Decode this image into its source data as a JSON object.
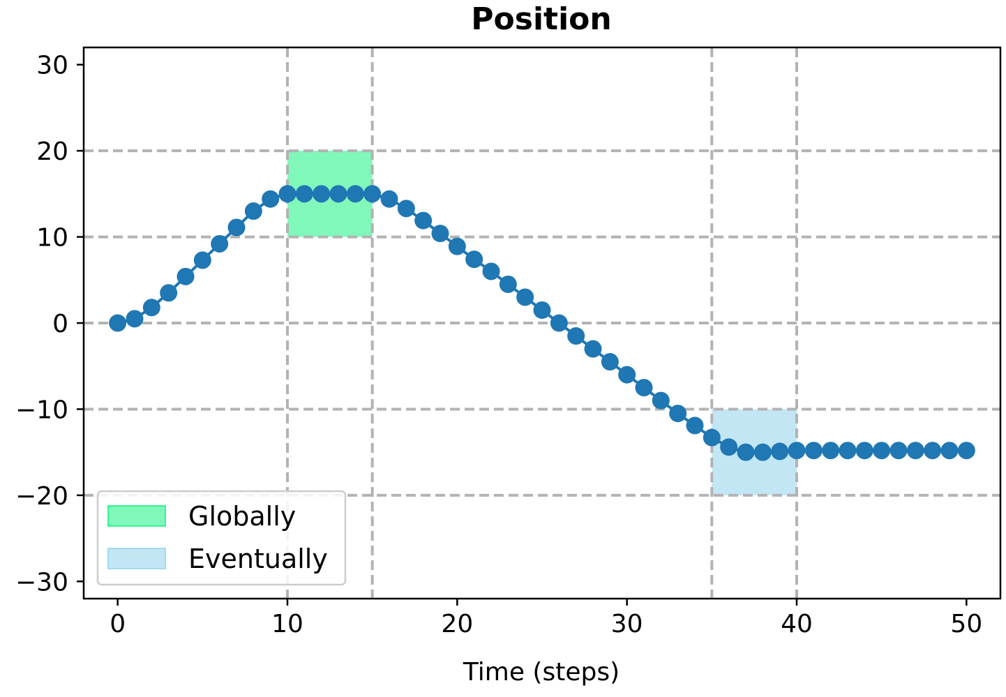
{
  "chart_data": {
    "type": "line",
    "title": "Position",
    "xlabel": "Time (steps)",
    "ylabel": "",
    "xlim": [
      -2,
      52
    ],
    "ylim": [
      -32,
      32
    ],
    "xticks": [
      0,
      10,
      20,
      30,
      40,
      50
    ],
    "yticks": [
      30,
      20,
      10,
      0,
      -10,
      -20,
      -30
    ],
    "ytick_labels": [
      "30",
      "20",
      "10",
      "0",
      "−10",
      "−20",
      "−30"
    ],
    "grid": "on, dashed",
    "legend_position": "lower-left",
    "series": [
      {
        "color": "#1f77b4",
        "marker": "circle",
        "x": [
          0,
          1,
          2,
          3,
          4,
          5,
          6,
          7,
          8,
          9,
          10,
          11,
          12,
          13,
          14,
          15,
          16,
          17,
          18,
          19,
          20,
          21,
          22,
          23,
          24,
          25,
          26,
          27,
          28,
          29,
          30,
          31,
          32,
          33,
          34,
          35,
          36,
          37,
          38,
          39,
          40,
          41,
          42,
          43,
          44,
          45,
          46,
          47,
          48,
          49,
          50
        ],
        "y": [
          0,
          0.5,
          1.8,
          3.5,
          5.4,
          7.3,
          9.2,
          11.1,
          13,
          14.4,
          15,
          15,
          15,
          15,
          15,
          15,
          14.4,
          13.3,
          11.9,
          10.4,
          8.9,
          7.4,
          6,
          4.5,
          3,
          1.5,
          0,
          -1.5,
          -3,
          -4.5,
          -6,
          -7.5,
          -9,
          -10.5,
          -11.9,
          -13.3,
          -14.4,
          -15,
          -15,
          -14.9,
          -14.8,
          -14.8,
          -14.8,
          -14.8,
          -14.8,
          -14.8,
          -14.8,
          -14.8,
          -14.8,
          -14.8,
          -14.8
        ]
      }
    ],
    "regions": [
      {
        "label": "Globally",
        "x": [
          10,
          15
        ],
        "y": [
          10,
          20
        ],
        "color": "#00f176",
        "opacity": 0.5
      },
      {
        "label": "Eventually",
        "x": [
          35,
          40
        ],
        "y": [
          -20,
          -10
        ],
        "color": "#87ceeb",
        "opacity": 0.5
      }
    ],
    "vlines": [
      10,
      15,
      35,
      40
    ],
    "legend": [
      "Globally",
      "Eventually"
    ]
  }
}
